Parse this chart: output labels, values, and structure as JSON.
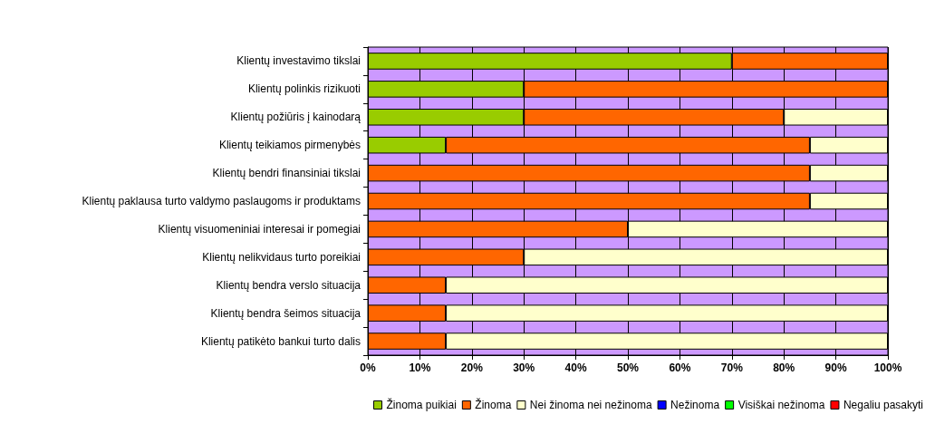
{
  "chart_data": {
    "type": "bar",
    "orientation": "horizontal",
    "stacked": true,
    "categories": [
      "Klientų investavimo tikslai",
      "Klientų polinkis rizikuoti",
      "Klientų požiūris į kainodarą",
      "Klientų teikiamos pirmenybės",
      "Klientų bendri finansiniai tikslai",
      "Klientų paklausa turto valdymo paslaugoms ir produktams",
      "Klientų visuomeniniai interesai ir pomegiai",
      "Klientų nelikvidaus turto poreikiai",
      "Klientų bendra verslo situacija",
      "Klientų bendra šeimos situacija",
      "Klientų patikėto bankui turto dalis"
    ],
    "series": [
      {
        "name": "Žinoma puikiai",
        "color": "#99cc00",
        "values": [
          70,
          30,
          30,
          15,
          0,
          0,
          0,
          0,
          0,
          0,
          0
        ]
      },
      {
        "name": "Žinoma",
        "color": "#ff6600",
        "values": [
          30,
          70,
          50,
          70,
          85,
          85,
          50,
          30,
          15,
          15,
          15
        ]
      },
      {
        "name": "Nei žinoma nei nežinoma",
        "color": "#ffffcc",
        "values": [
          0,
          0,
          20,
          15,
          15,
          15,
          50,
          70,
          85,
          85,
          85
        ]
      },
      {
        "name": "Nežinoma",
        "color": "#0000ff",
        "values": [
          0,
          0,
          0,
          0,
          0,
          0,
          0,
          0,
          0,
          0,
          0
        ]
      },
      {
        "name": "Visiškai nežinoma",
        "color": "#00ff00",
        "values": [
          0,
          0,
          0,
          0,
          0,
          0,
          0,
          0,
          0,
          0,
          0
        ]
      },
      {
        "name": "Negaliu pasakyti",
        "color": "#ff0000",
        "values": [
          0,
          0,
          0,
          0,
          0,
          0,
          0,
          0,
          0,
          0,
          0
        ]
      }
    ],
    "xlim": [
      0,
      100
    ],
    "xticks": [
      {
        "value": 0,
        "label": "0%"
      },
      {
        "value": 10,
        "label": "10%"
      },
      {
        "value": 20,
        "label": "20%"
      },
      {
        "value": 30,
        "label": "30%"
      },
      {
        "value": 40,
        "label": "40%"
      },
      {
        "value": 50,
        "label": "50%"
      },
      {
        "value": 60,
        "label": "60%"
      },
      {
        "value": 70,
        "label": "70%"
      },
      {
        "value": 80,
        "label": "80%"
      },
      {
        "value": 90,
        "label": "90%"
      },
      {
        "value": 100,
        "label": "100%"
      }
    ],
    "grid": "x",
    "legend": "bottom right"
  }
}
